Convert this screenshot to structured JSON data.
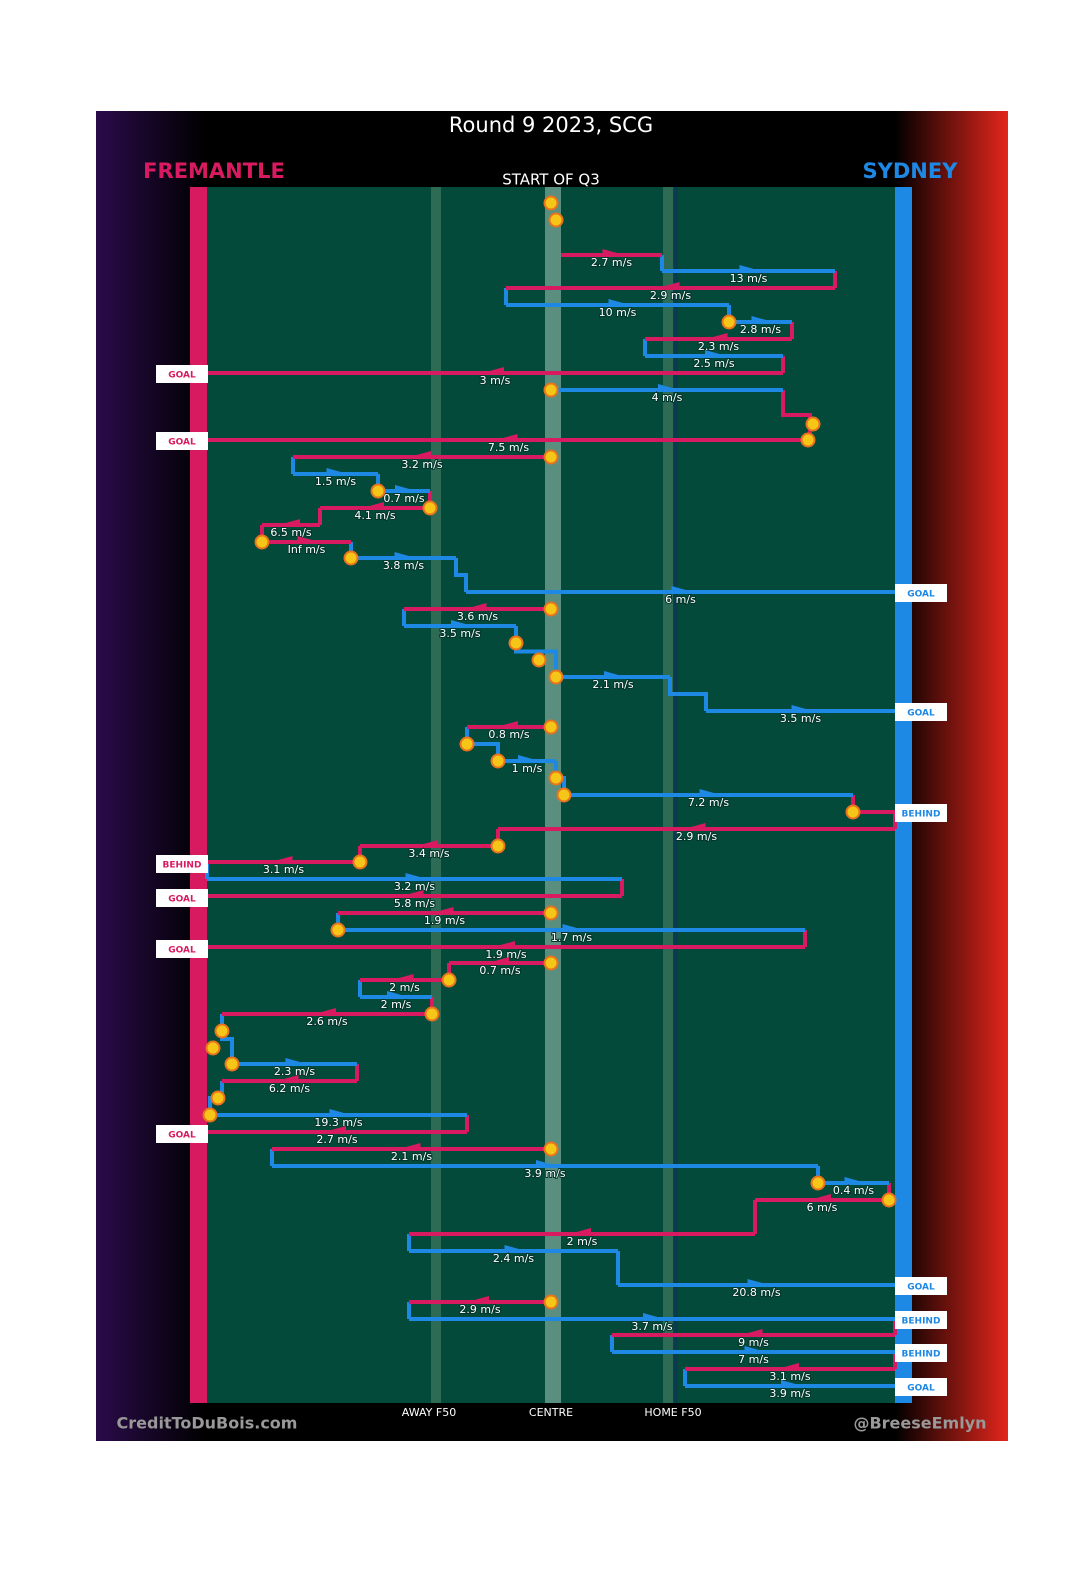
{
  "header": {
    "title": "Round 9 2023, SCG",
    "home_team": "FREMANTLE",
    "away_team": "SYDNEY",
    "subtitle": "START OF Q3"
  },
  "field_markers": [
    "AWAY F50",
    "CENTRE",
    "HOME F50"
  ],
  "footer": {
    "left": "CreditToDuBois.com",
    "right": "@BreeseEmlyn"
  },
  "moves": [
    "2.7 m/s",
    "13 m/s",
    "2.9 m/s",
    "10 m/s",
    "2.8 m/s",
    "2.3 m/s",
    "2.5 m/s",
    "3 m/s",
    "4 m/s",
    "7.5 m/s",
    "3.2 m/s",
    "1.5 m/s",
    "0.7 m/s",
    "4.1 m/s",
    "6.5 m/s",
    "Inf m/s",
    "3.8 m/s",
    "6 m/s",
    "3.6 m/s",
    "3.5 m/s",
    "2.1 m/s",
    "3.5 m/s",
    "0.8 m/s",
    "1 m/s",
    "7.2 m/s",
    "2.9 m/s",
    "3.4 m/s",
    "3.1 m/s",
    "3.2 m/s",
    "5.8 m/s",
    "1.9 m/s",
    "1.7 m/s",
    "1.9 m/s",
    "0.7 m/s",
    "2 m/s",
    "2 m/s",
    "2.6 m/s",
    "2.3 m/s",
    "6.2 m/s",
    "19.3 m/s",
    "2.7 m/s",
    "2.1 m/s",
    "3.9 m/s",
    "0.4 m/s",
    "6 m/s",
    "2 m/s",
    "2.4 m/s",
    "20.8 m/s",
    "2.9 m/s",
    "3.7 m/s",
    "9 m/s",
    "7 m/s",
    "3.1 m/s",
    "3.9 m/s"
  ],
  "outcomes": [
    "GOAL",
    "GOAL",
    "GOAL",
    "GOAL",
    "BEHIND",
    "BEHIND",
    "GOAL",
    "GOAL",
    "GOAL",
    "GOAL",
    "BEHIND",
    "BEHIND",
    "GOAL"
  ]
}
